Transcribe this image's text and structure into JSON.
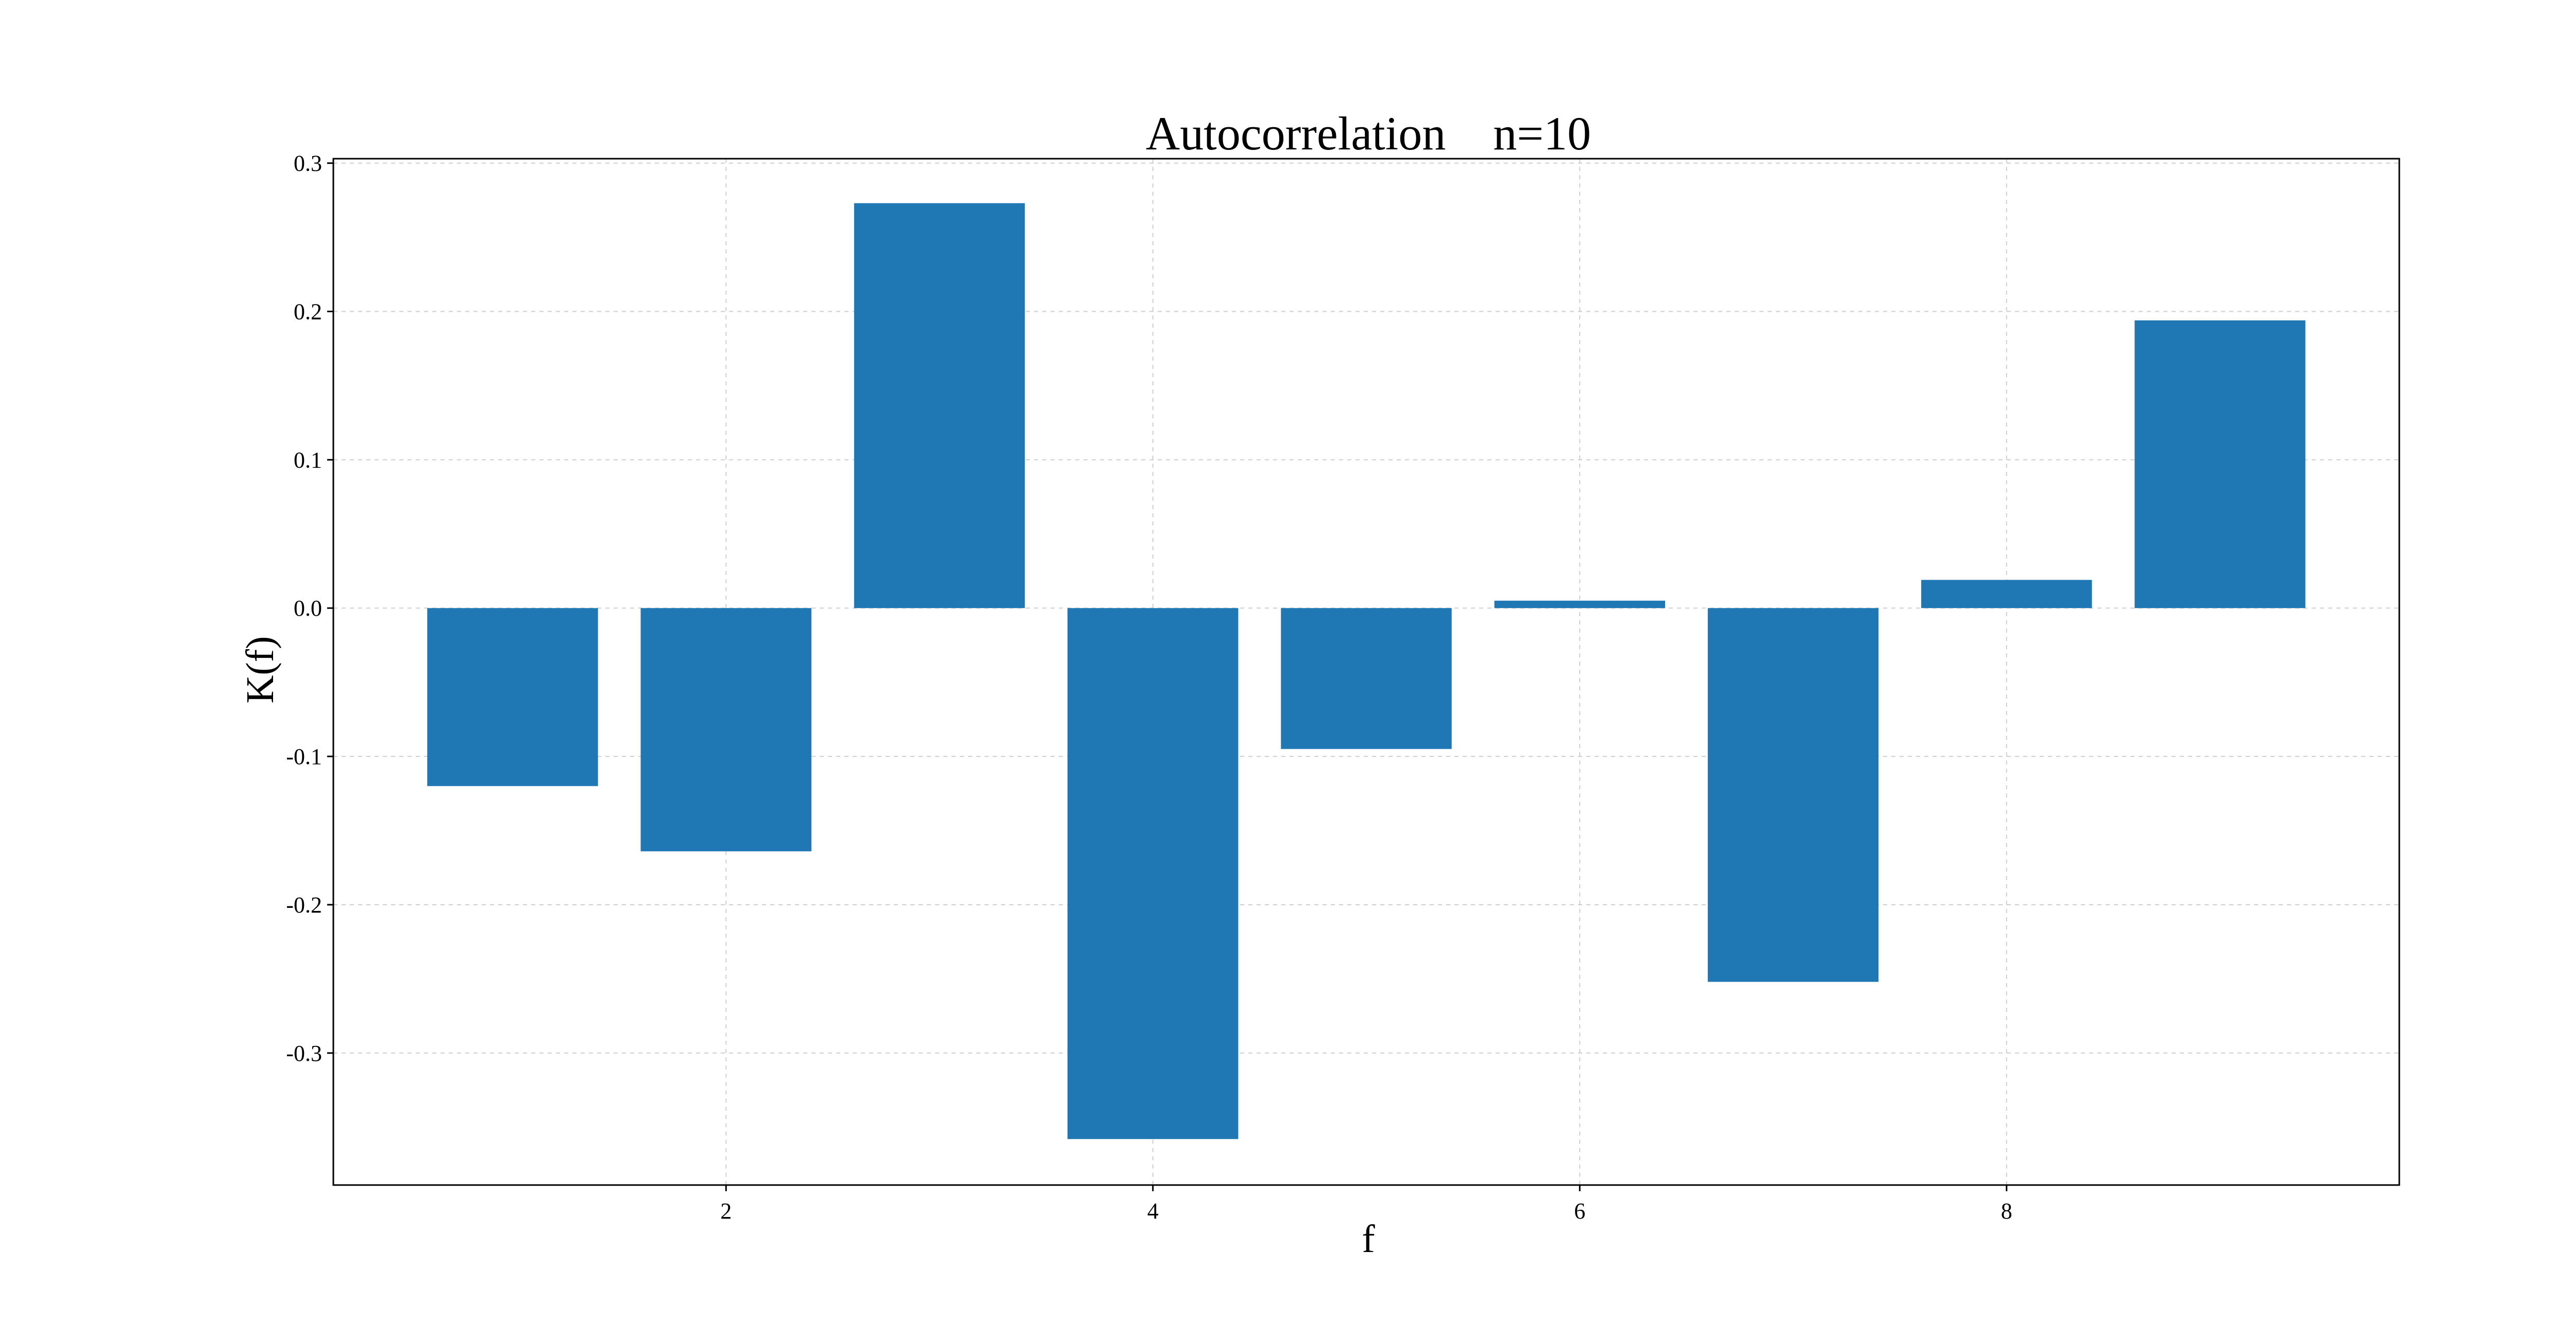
{
  "chart_data": {
    "type": "bar",
    "title": "Autocorrelation    n=10",
    "xlabel": "f",
    "ylabel": "K(f)",
    "x": [
      1,
      2,
      3,
      4,
      5,
      6,
      7,
      8,
      9
    ],
    "values": [
      -0.12,
      -0.164,
      0.273,
      -0.358,
      -0.095,
      0.005,
      -0.252,
      0.019,
      0.194
    ],
    "bar_width": 0.8,
    "xlim": [
      0.16,
      9.84
    ],
    "ylim": [
      -0.389,
      0.303
    ],
    "xticks": [
      2,
      4,
      6,
      8
    ],
    "xtick_labels": [
      "2",
      "4",
      "6",
      "8"
    ],
    "yticks": [
      -0.3,
      -0.2,
      -0.1,
      0.0,
      0.1,
      0.2,
      0.3
    ],
    "ytick_labels": [
      "-0.3",
      "-0.2",
      "-0.1",
      "0.0",
      "0.1",
      "0.2",
      "0.3"
    ],
    "grid": true,
    "bar_color": "#1f77b4"
  }
}
